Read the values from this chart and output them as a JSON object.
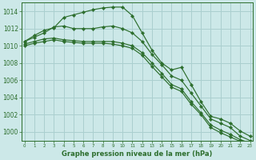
{
  "title": "Graphe pression niveau de la mer (hPa)",
  "bg_color": "#cce8e8",
  "grid_color": "#aacfcf",
  "line_color": "#2d6e2d",
  "x_ticks": [
    0,
    1,
    2,
    3,
    4,
    5,
    6,
    7,
    8,
    9,
    10,
    11,
    12,
    13,
    14,
    15,
    16,
    17,
    18,
    19,
    20,
    21,
    22,
    23
  ],
  "ylim": [
    999.0,
    1015.0
  ],
  "yticks": [
    1000,
    1002,
    1004,
    1006,
    1008,
    1010,
    1012,
    1014
  ],
  "series": [
    [
      1010.5,
      1011.2,
      1011.8,
      1012.1,
      1013.3,
      1013.6,
      1013.9,
      1014.2,
      1014.4,
      1014.5,
      1014.5,
      1013.5,
      1011.5,
      1009.5,
      1008.0,
      1007.2,
      1007.5,
      1005.5,
      1003.5,
      1001.8,
      1001.5,
      1001.0,
      1000.1,
      999.5
    ],
    [
      1010.5,
      1011.0,
      1011.5,
      1012.2,
      1012.3,
      1012.0,
      1012.0,
      1012.0,
      1012.2,
      1012.3,
      1012.0,
      1011.5,
      1010.5,
      1009.0,
      1007.8,
      1006.5,
      1006.0,
      1004.5,
      1003.0,
      1001.5,
      1001.0,
      1000.5,
      999.5,
      999.0
    ],
    [
      1010.2,
      1010.5,
      1010.8,
      1010.9,
      1010.7,
      1010.6,
      1010.5,
      1010.5,
      1010.5,
      1010.5,
      1010.3,
      1010.0,
      1009.2,
      1008.0,
      1006.8,
      1005.5,
      1005.0,
      1003.5,
      1002.2,
      1000.8,
      1000.2,
      999.7,
      999.1,
      998.7
    ],
    [
      1010.0,
      1010.3,
      1010.5,
      1010.7,
      1010.5,
      1010.4,
      1010.3,
      1010.3,
      1010.3,
      1010.2,
      1010.0,
      1009.7,
      1008.9,
      1007.6,
      1006.4,
      1005.2,
      1004.7,
      1003.2,
      1002.0,
      1000.5,
      999.9,
      999.4,
      998.9,
      998.5
    ]
  ]
}
